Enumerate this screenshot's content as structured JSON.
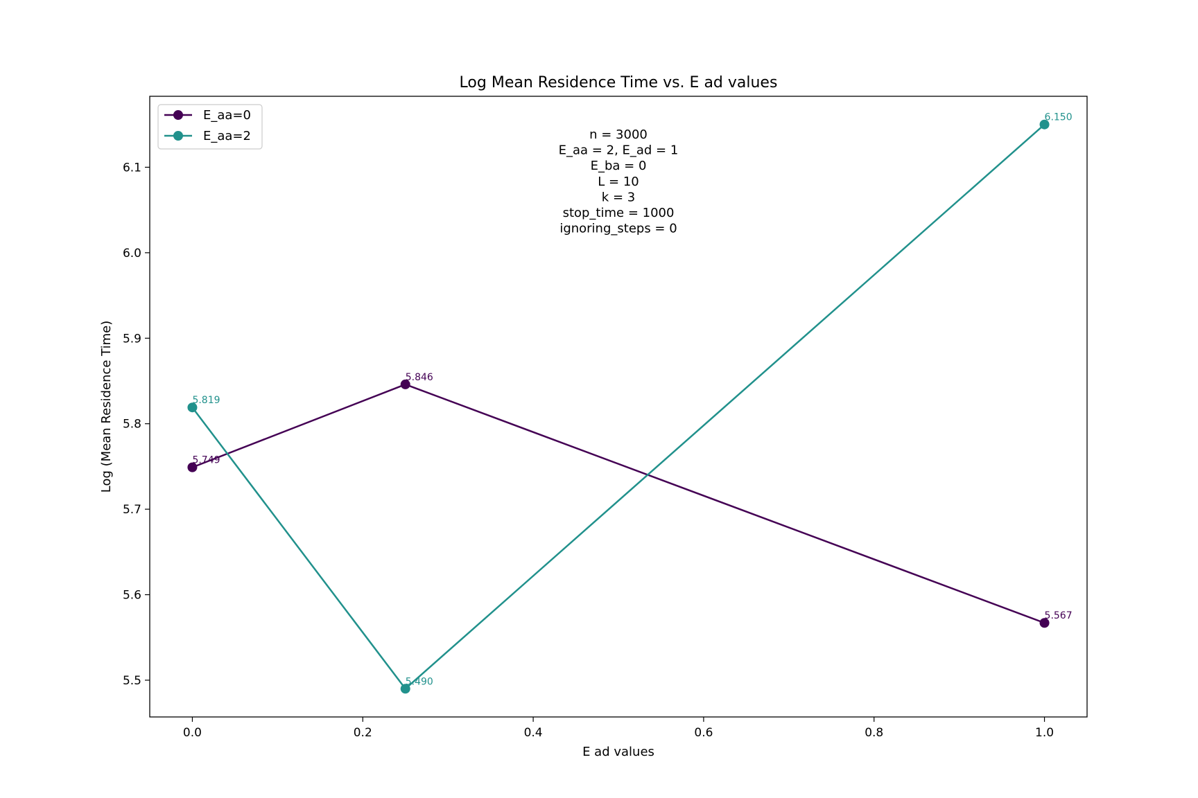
{
  "chart_data": {
    "type": "line",
    "title": "Log Mean Residence Time vs. E ad values",
    "xlabel": "E ad values",
    "ylabel": "Log (Mean Residence Time)",
    "xlim": [
      -0.05,
      1.05
    ],
    "ylim": [
      5.457,
      6.183
    ],
    "x_ticks": [
      0.0,
      0.2,
      0.4,
      0.6,
      0.8,
      1.0
    ],
    "x_tick_labels": [
      "0.0",
      "0.2",
      "0.4",
      "0.6",
      "0.8",
      "1.0"
    ],
    "y_ticks": [
      5.5,
      5.6,
      5.7,
      5.8,
      5.9,
      6.0,
      6.1
    ],
    "y_tick_labels": [
      "5.5",
      "5.6",
      "5.7",
      "5.8",
      "5.9",
      "6.0",
      "6.1"
    ],
    "grid": false,
    "legend_position": "top-left",
    "series": [
      {
        "name": "E_aa=0",
        "color": "#440154",
        "x": [
          0.0,
          0.25,
          1.0
        ],
        "y": [
          5.749,
          5.846,
          5.567
        ],
        "labels": [
          "5.749",
          "5.846",
          "5.567"
        ]
      },
      {
        "name": "E_aa=2",
        "color": "#21918c",
        "x": [
          0.0,
          0.25,
          1.0
        ],
        "y": [
          5.819,
          5.49,
          6.15
        ],
        "labels": [
          "5.819",
          "5.490",
          "6.150"
        ]
      }
    ],
    "annotation_lines": [
      "n = 3000",
      "E_aa = 2, E_ad = 1",
      "E_ba = 0",
      "L = 10",
      "k = 3",
      "stop_time = 1000",
      "ignoring_steps = 0"
    ]
  }
}
